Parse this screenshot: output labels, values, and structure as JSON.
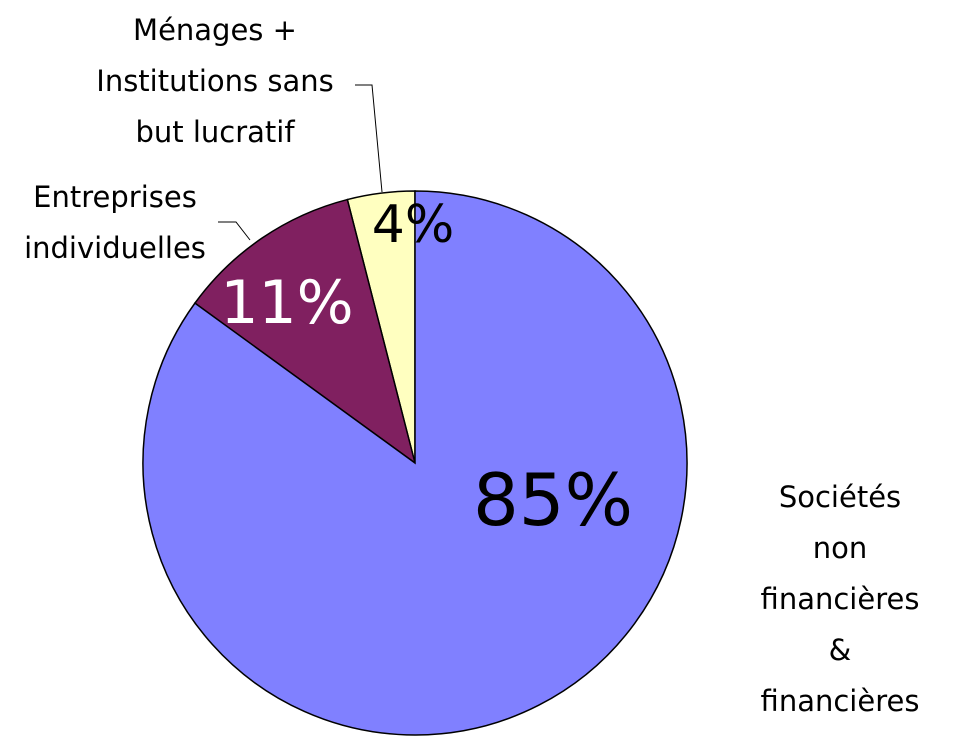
{
  "chart_data": {
    "type": "pie",
    "categories": [
      "Sociétés non\nfinancières &\nfinancières",
      "Entreprises\nindividuelles",
      "Ménages +\nInstitutions sans\nbut lucratif"
    ],
    "values": [
      85,
      11,
      4
    ],
    "value_labels": [
      "85%",
      "11%",
      "4%"
    ],
    "colors": [
      "#8080ff",
      "#802060",
      "#ffffc0"
    ],
    "label_colors": [
      "#000000",
      "#ffffff",
      "#000000"
    ]
  }
}
